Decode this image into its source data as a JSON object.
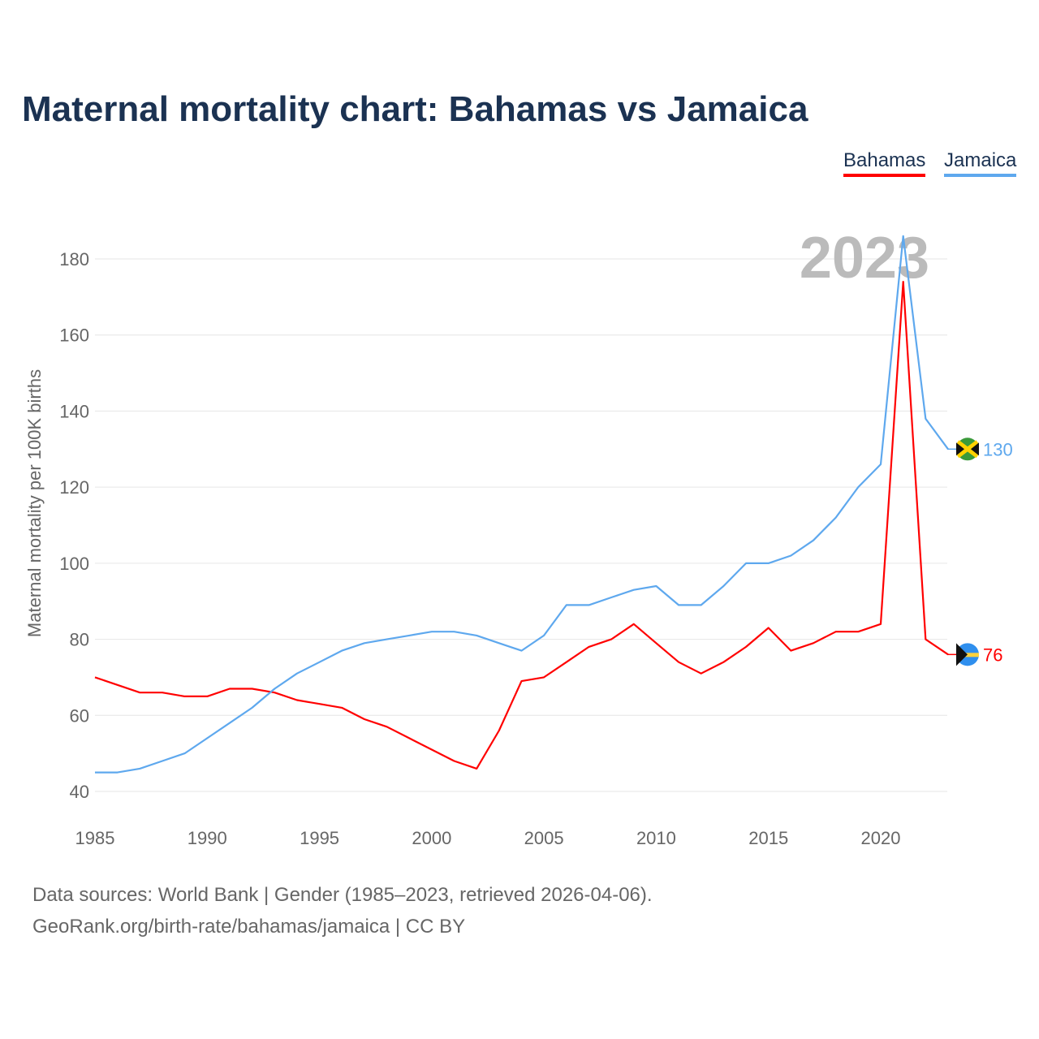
{
  "title": "Maternal mortality chart: Bahamas vs Jamaica",
  "footer": {
    "line1": "Data sources: World Bank | Gender (1985–2023, retrieved 2026-04-06).",
    "line2": "GeoRank.org/birth-rate/bahamas/jamaica | CC BY"
  },
  "chart_data": {
    "type": "line",
    "title": "Maternal mortality chart: Bahamas vs Jamaica",
    "ylabel": "Maternal mortality per 100K births",
    "xlabel": "",
    "year_label": "2023",
    "ylim": [
      35,
      190
    ],
    "xlim": [
      1985,
      2023
    ],
    "yticks": [
      40,
      60,
      80,
      100,
      120,
      140,
      160,
      180
    ],
    "xticks": [
      1985,
      1990,
      1995,
      2000,
      2005,
      2010,
      2015,
      2020
    ],
    "legend_position": "top-right",
    "x": [
      1985,
      1986,
      1987,
      1988,
      1989,
      1990,
      1991,
      1992,
      1993,
      1994,
      1995,
      1996,
      1997,
      1998,
      1999,
      2000,
      2001,
      2002,
      2003,
      2004,
      2005,
      2006,
      2007,
      2008,
      2009,
      2010,
      2011,
      2012,
      2013,
      2014,
      2015,
      2016,
      2017,
      2018,
      2019,
      2020,
      2021,
      2022,
      2023
    ],
    "series": [
      {
        "name": "Bahamas",
        "color": "#ff0000",
        "end_label": "76",
        "values": [
          70,
          68,
          66,
          66,
          65,
          65,
          67,
          67,
          66,
          64,
          63,
          62,
          59,
          57,
          54,
          51,
          48,
          46,
          56,
          69,
          70,
          74,
          78,
          80,
          84,
          79,
          74,
          71,
          74,
          78,
          83,
          77,
          79,
          82,
          82,
          84,
          174,
          80,
          76
        ]
      },
      {
        "name": "Jamaica",
        "color": "#5ea8ee",
        "end_label": "130",
        "values": [
          45,
          45,
          46,
          48,
          50,
          54,
          58,
          62,
          67,
          71,
          74,
          77,
          79,
          80,
          81,
          82,
          82,
          81,
          79,
          77,
          81,
          89,
          89,
          91,
          93,
          94,
          89,
          89,
          94,
          100,
          100,
          102,
          106,
          112,
          120,
          126,
          186,
          138,
          130
        ]
      }
    ]
  }
}
